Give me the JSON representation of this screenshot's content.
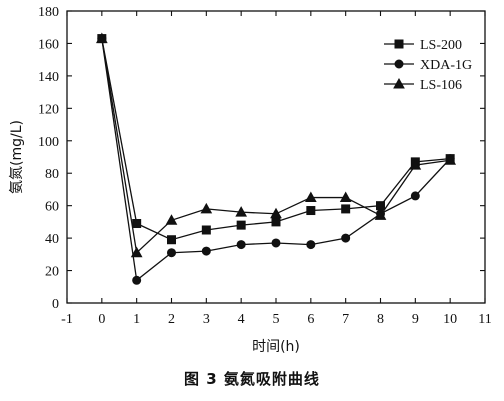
{
  "chart_data": {
    "type": "line",
    "caption": "图 3   氨氮吸附曲线",
    "xlabel": "时间(h)",
    "ylabel": "氨氮(mg/L)",
    "xlim": [
      -1,
      11
    ],
    "ylim": [
      0,
      180
    ],
    "xticks": [
      -1,
      0,
      1,
      2,
      3,
      4,
      5,
      6,
      7,
      8,
      9,
      10,
      11
    ],
    "yticks": [
      0,
      20,
      40,
      60,
      80,
      100,
      120,
      140,
      160,
      180
    ],
    "grid": false,
    "legend_position": "top-right",
    "x": [
      0,
      1,
      2,
      3,
      4,
      5,
      6,
      7,
      8,
      9,
      10
    ],
    "series": [
      {
        "name": "LS-200",
        "marker": "square",
        "values": [
          163,
          49,
          39,
          45,
          48,
          50,
          57,
          58,
          60,
          87,
          89
        ]
      },
      {
        "name": "XDA-1G",
        "marker": "circle",
        "values": [
          163,
          14,
          31,
          32,
          36,
          37,
          36,
          40,
          55,
          66,
          89
        ]
      },
      {
        "name": "LS-106",
        "marker": "triangle",
        "values": [
          163,
          31,
          51,
          58,
          56,
          55,
          65,
          65,
          54,
          85,
          88
        ]
      }
    ]
  }
}
